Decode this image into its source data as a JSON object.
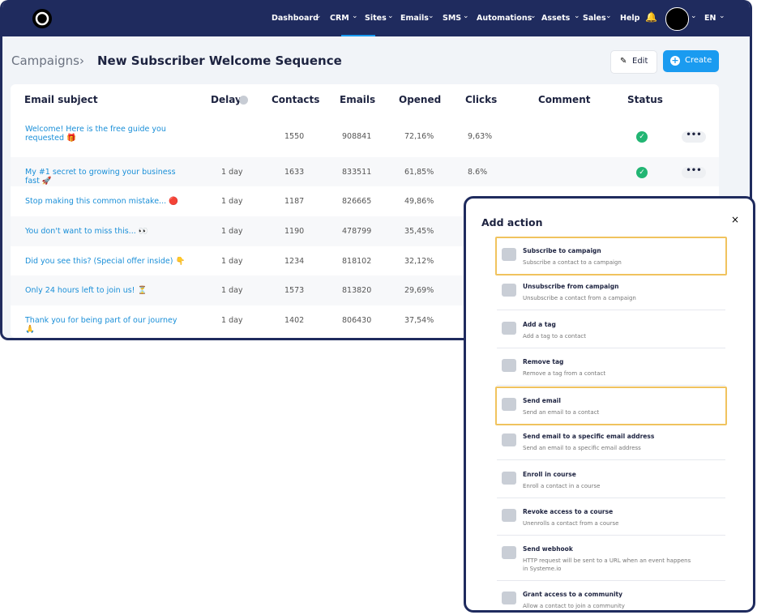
{
  "nav": {
    "items": [
      "Dashboard",
      "CRM",
      "Sites",
      "Emails",
      "SMS",
      "Automations",
      "Assets",
      "Sales"
    ],
    "help": "Help",
    "language": "EN"
  },
  "header": {
    "breadcrumb": "Campaigns",
    "title": "New Subscriber Welcome Sequence",
    "edit": "Edit",
    "create": "Create"
  },
  "table": {
    "columns": [
      "Email subject",
      "Delay",
      "Contacts",
      "Emails",
      "Opened",
      "Clicks",
      "Comment",
      "Status"
    ],
    "rows": [
      {
        "subject": "Welcome! Here is the free guide you requested 🎁",
        "contacts": 1550,
        "emails": 908841,
        "opened": "72,16%",
        "clicks": "9,63%"
      },
      {
        "subject": "My #1 secret to growing your business fast 🚀",
        "delay": "1 day",
        "contacts": 1633,
        "emails": 833511,
        "opened": "61,85%",
        "clicks": "8.6%"
      },
      {
        "subject": "Stop making this common mistake... 🔴",
        "delay": "1 day",
        "contacts": 1187,
        "emails": 826665,
        "opened": "49,86%"
      },
      {
        "subject": "You don't want to miss this... 👀",
        "delay": "1 day",
        "contacts": 1190,
        "emails": 478799,
        "opened": "35,45%"
      },
      {
        "subject": "Did you see this? (Special offer inside) 👇",
        "delay": "1 day",
        "contacts": 1234,
        "emails": 818102,
        "opened": "32,12%"
      },
      {
        "subject": "Only 24 hours left to join us! ⏳",
        "delay": "1 day",
        "contacts": 1573,
        "emails": 813820,
        "opened": "29,69%"
      },
      {
        "subject": "Thank you for being part of our journey 🙏",
        "delay": "1 day",
        "contacts": 1402,
        "emails": 806430,
        "opened": "37,54%"
      }
    ]
  },
  "modal": {
    "title": "Add action",
    "close": "×",
    "actions": [
      {
        "title": "Subscribe to campaign",
        "description": "Subscribe a contact to a campaign"
      },
      {
        "title": "Unsubscribe from campaign",
        "description": "Unsubscribe a contact from a campaign"
      },
      {
        "title": "Add a tag",
        "description": "Add a tag to a contact"
      },
      {
        "title": "Remove tag",
        "description": "Remove a tag from a contact"
      },
      {
        "title": "Send email",
        "description": "Send an email to a contact"
      },
      {
        "title": "Send email to a specific email address",
        "description": "Send an email to a specific email address"
      },
      {
        "title": "Enroll in course",
        "description": "Enroll a contact in a course"
      },
      {
        "title": "Revoke access to a course",
        "description": "Unenrolls a contact from a course"
      },
      {
        "title": "Send webhook",
        "description": "HTTP request will be sent to a URL when an event happens in Systeme.io"
      },
      {
        "title": "Grant access to a community",
        "description": "Allow a contact to join a community"
      }
    ]
  }
}
